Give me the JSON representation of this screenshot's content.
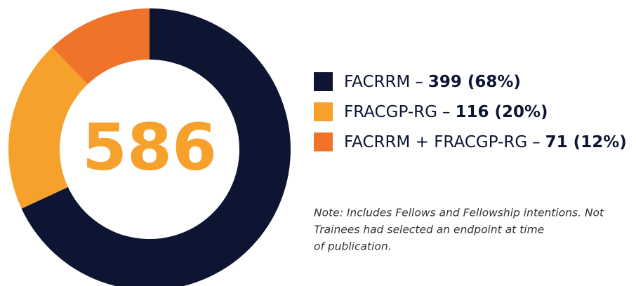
{
  "chart_data": {
    "type": "pie",
    "total": 586,
    "separator": "–",
    "series": [
      {
        "name": "FACRRM",
        "color": "#0d1533"
      },
      {
        "name": "FRACGP-RG",
        "color": "#f7a12d"
      },
      {
        "name": "FACRRM + FRACGP-RG",
        "color": "#f0732a"
      }
    ],
    "values": [
      399,
      116,
      71
    ],
    "value_labels": [
      "399 (68%)",
      "116 (20%)",
      "71 (12%)"
    ],
    "total_color": "#f7a12d",
    "note": [
      "Note: Includes Fellows and Fellowship intentions. Not",
      "Trainees had selected an endpoint at time",
      "of publication."
    ]
  }
}
